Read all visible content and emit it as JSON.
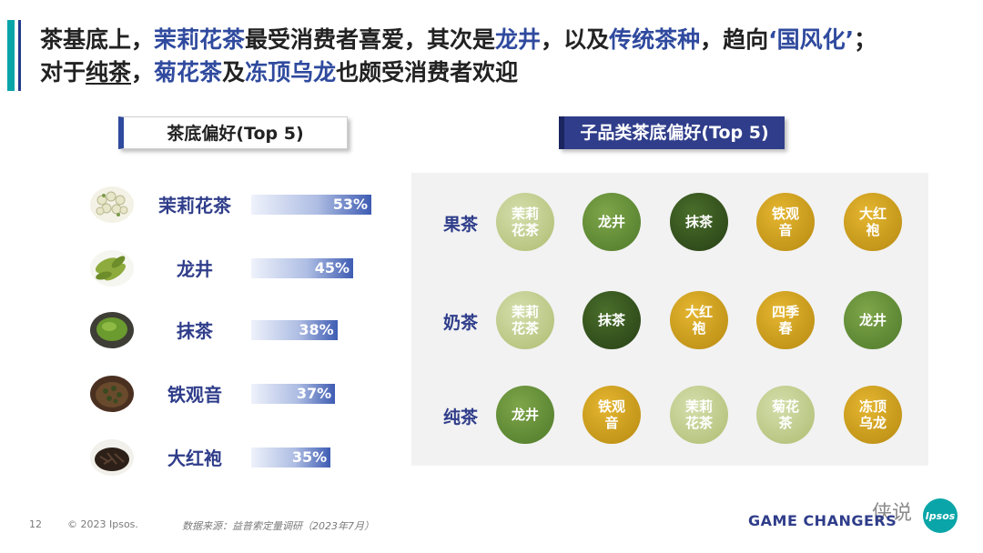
{
  "headline": {
    "line1": [
      {
        "text": "茶基底上，",
        "style": "normal"
      },
      {
        "text": "茉莉花茶",
        "style": "hl"
      },
      {
        "text": "最受消费者喜爱，其次是",
        "style": "normal"
      },
      {
        "text": "龙井",
        "style": "hl"
      },
      {
        "text": "，以及",
        "style": "normal"
      },
      {
        "text": "传统茶种",
        "style": "hl"
      },
      {
        "text": "，趋向",
        "style": "normal"
      },
      {
        "text": "‘国风化’",
        "style": "hl"
      },
      {
        "text": "；",
        "style": "normal"
      }
    ],
    "line2": [
      {
        "text": "对于",
        "style": "normal"
      },
      {
        "text": "纯茶",
        "style": "ul"
      },
      {
        "text": "，",
        "style": "normal"
      },
      {
        "text": "菊花茶",
        "style": "hl"
      },
      {
        "text": "及",
        "style": "normal"
      },
      {
        "text": "冻顶乌龙",
        "style": "hl"
      },
      {
        "text": "也颇受消费者欢迎",
        "style": "normal"
      }
    ]
  },
  "left_title": "茶底偏好(Top 5)",
  "right_title": "子品类茶底偏好(Top 5)",
  "chart_data": [
    {
      "type": "bar",
      "orientation": "horizontal",
      "title": "茶底偏好(Top 5)",
      "categories": [
        "茉莉花茶",
        "龙井",
        "抹茶",
        "铁观音",
        "大红袍"
      ],
      "values": [
        53,
        45,
        38,
        37,
        35
      ],
      "value_labels": [
        "53%",
        "45%",
        "38%",
        "37%",
        "35%"
      ],
      "unit": "%",
      "xlim": [
        0,
        60
      ],
      "grid": false,
      "icons": [
        "jasmine-tea-icon",
        "longjing-tea-icon",
        "matcha-icon",
        "tieguanyin-icon",
        "dahongpao-icon"
      ]
    },
    {
      "type": "table",
      "title": "子品类茶底偏好(Top 5)",
      "rows": [
        {
          "label": "果茶",
          "items": [
            "茉莉花茶",
            "龙井",
            "抹茶",
            "铁观音",
            "大红袍"
          ]
        },
        {
          "label": "奶茶",
          "items": [
            "茉莉花茶",
            "抹茶",
            "大红袍",
            "四季春",
            "龙井"
          ]
        },
        {
          "label": "纯茶",
          "items": [
            "龙井",
            "铁观音",
            "茉莉花茶",
            "菊花茶",
            "冻顶乌龙"
          ]
        }
      ]
    }
  ],
  "circle_lines": {
    "茉莉花茶": [
      "茉莉",
      "花茶"
    ],
    "龙井": [
      "龙井"
    ],
    "抹茶": [
      "抹茶"
    ],
    "铁观音": [
      "铁观",
      "音"
    ],
    "大红袍": [
      "大红",
      "袍"
    ],
    "四季春": [
      "四季",
      "春"
    ],
    "菊花茶": [
      "菊花",
      "茶"
    ],
    "冻顶乌龙": [
      "冻顶",
      "乌龙"
    ]
  },
  "circle_colors": {
    "茉莉花茶": "light",
    "龙井": "mid",
    "抹茶": "dark",
    "铁观音": "gold",
    "大红袍": "gold",
    "四季春": "gold",
    "菊花茶": "light",
    "冻顶乌龙": "gold"
  },
  "footer": {
    "page": "12",
    "copyright": "© 2023 Ipsos.",
    "source": "数据来源：益普索定量调研（2023年7月）",
    "brand": "GAME CHANGERS",
    "logo": "Ipsos",
    "watermark": "侠说"
  },
  "colors": {
    "accent": "#2f3d8a",
    "teal": "#0aa5a8",
    "panel": "#f2f2f2"
  }
}
